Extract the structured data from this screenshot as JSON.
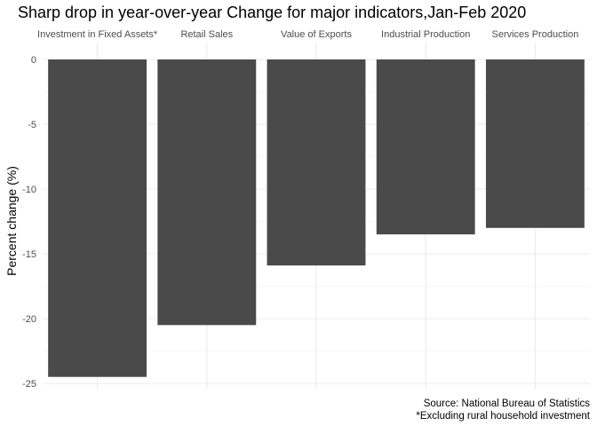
{
  "chart_data": {
    "type": "bar",
    "title": "Sharp drop in year-over-year Change for major indicators,Jan-Feb 2020",
    "categories": [
      "Investment in Fixed Assets*",
      "Retail Sales",
      "Value of Exports",
      "Industrial Production",
      "Services Production"
    ],
    "values": [
      -24.5,
      -20.5,
      -15.9,
      -13.5,
      -13.0
    ],
    "xlabel": "",
    "ylabel": "Percent change (%)",
    "ylim": [
      -25.25,
      0
    ],
    "yticks": [
      0,
      -5,
      -10,
      -15,
      -20,
      -25
    ],
    "x_axis_position": "top",
    "grid": true,
    "bar_color": "#4a4a4a",
    "caption": [
      "Source: National Bureau of Statistics",
      "*Excluding rural household investment"
    ]
  }
}
